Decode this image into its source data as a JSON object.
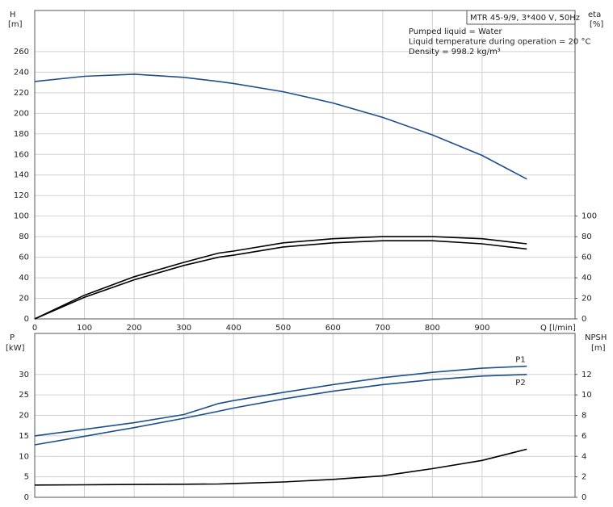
{
  "chart_data": [
    {
      "type": "line",
      "info_box": "MTR 45-9/9, 3*400 V, 50Hz",
      "notes": [
        "Pumped liquid = Water",
        "Liquid temperature during operation = 20 °C",
        "Density = 998.2 kg/m³"
      ],
      "y_label": "H",
      "y_unit": "[m]",
      "y2_label": "eta",
      "y2_unit": "[%]",
      "x_label": "Q [l/min]",
      "x": [
        0,
        100,
        200,
        300,
        370,
        400,
        500,
        600,
        700,
        800,
        900,
        990
      ],
      "xlim": [
        0,
        1087
      ],
      "xticks": [
        0,
        100,
        200,
        300,
        400,
        500,
        600,
        700,
        800,
        900
      ],
      "ylim": [
        0,
        300
      ],
      "yticks": [
        0,
        20,
        40,
        60,
        80,
        100,
        120,
        140,
        160,
        180,
        200,
        220,
        240,
        260
      ],
      "y2lim": [
        0,
        300
      ],
      "y2ticks": [
        0,
        20,
        40,
        60,
        80,
        100
      ],
      "grid": true,
      "series": [
        {
          "color": "#1d4f8c",
          "values": [
            231,
            236,
            238,
            235,
            231,
            229,
            221,
            210,
            196,
            179,
            159,
            136
          ]
        },
        {
          "color": "#000000",
          "axis": "y2",
          "values": [
            0,
            23,
            41,
            55,
            64,
            66,
            74,
            78,
            80,
            80,
            78,
            73
          ]
        },
        {
          "color": "#000000",
          "axis": "y2",
          "values": [
            0,
            21,
            38,
            52,
            60,
            62,
            70,
            74,
            76,
            76,
            73,
            68
          ]
        }
      ]
    },
    {
      "type": "line",
      "y_label": "P",
      "y_unit": "[kW]",
      "y2_label": "NPSH",
      "y2_unit": "[m]",
      "x": [
        0,
        100,
        200,
        300,
        370,
        400,
        500,
        600,
        700,
        800,
        900,
        990
      ],
      "xlim": [
        0,
        1087
      ],
      "ylim": [
        0,
        40
      ],
      "yticks": [
        0,
        5,
        10,
        15,
        20,
        25,
        30
      ],
      "y2lim": [
        0,
        16
      ],
      "y2ticks": [
        0,
        2,
        4,
        6,
        8,
        10,
        12
      ],
      "grid": true,
      "series": [
        {
          "name": "P1",
          "color": "#1d4f8c",
          "values": [
            15.0,
            16.6,
            18.2,
            20.2,
            22.9,
            23.6,
            25.6,
            27.5,
            29.2,
            30.5,
            31.5,
            32.0
          ]
        },
        {
          "name": "P2",
          "color": "#1d4f8c",
          "values": [
            12.8,
            14.9,
            17.0,
            19.3,
            21.0,
            21.8,
            24.0,
            25.9,
            27.5,
            28.7,
            29.6,
            30.0
          ]
        },
        {
          "color": "#000000",
          "axis": "y2",
          "values": [
            1.2,
            1.22,
            1.25,
            1.28,
            1.3,
            1.35,
            1.5,
            1.75,
            2.1,
            2.8,
            3.6,
            4.7
          ]
        }
      ]
    }
  ]
}
